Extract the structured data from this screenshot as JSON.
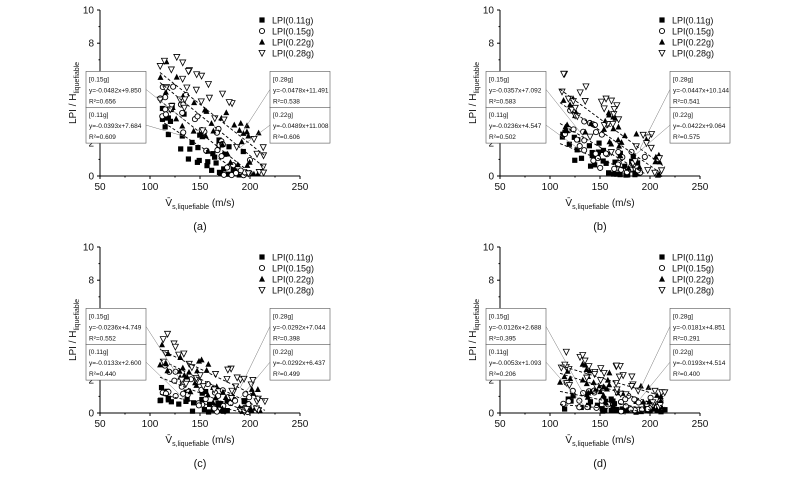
{
  "figure": {
    "layout": "2x2 grid of scatter plots"
  },
  "chart_data": [
    {
      "panel_label": "(a)",
      "type": "scatter",
      "xlabel": "V̄",
      "xlabel_sub": "s,liquefiable",
      "xlabel_unit": "(m/s)",
      "ylabel": "LPI / H",
      "ylabel_sub": "liquefiable",
      "xlim": [
        50,
        250
      ],
      "ylim": [
        0,
        10
      ],
      "xticks": [
        "50",
        "100",
        "150",
        "200",
        "250"
      ],
      "yticks": [
        "0",
        "2",
        "4",
        "6",
        "8",
        "10"
      ],
      "legend_position": "top-right",
      "series": [
        {
          "name": "LPI(0.11g)",
          "marker": "filled-square",
          "fit_label": "[0.11g]",
          "equation": "y=-0.0393x+7.684",
          "r2": "R²=0.609",
          "slope": -0.0393,
          "intercept": 7.684,
          "x_range": [
            110,
            195
          ]
        },
        {
          "name": "LPI(0.15g)",
          "marker": "open-circle",
          "fit_label": "[0.15g]",
          "equation": "y=-0.0482x+9.850",
          "r2": "R²=0.656",
          "slope": -0.0482,
          "intercept": 9.85,
          "x_range": [
            110,
            200
          ]
        },
        {
          "name": "LPI(0.22g)",
          "marker": "filled-triangle",
          "fit_label": "[0.22g]",
          "equation": "y=-0.0489x+11.008",
          "r2": "R²=0.606",
          "slope": -0.0489,
          "intercept": 11.008,
          "x_range": [
            110,
            215
          ]
        },
        {
          "name": "LPI(0.28g)",
          "marker": "open-inverted-triangle",
          "fit_label": "[0.28g]",
          "equation": "y=-0.0478x+11.491",
          "r2": "R²=0.538",
          "slope": -0.0478,
          "intercept": 11.491,
          "x_range": [
            110,
            215
          ]
        }
      ]
    },
    {
      "panel_label": "(b)",
      "type": "scatter",
      "xlabel": "V̄",
      "xlabel_sub": "s,liquefiable",
      "xlabel_unit": "(m/s)",
      "ylabel": "LPI / H",
      "ylabel_sub": "liquefiable",
      "xlim": [
        50,
        250
      ],
      "ylim": [
        0,
        10
      ],
      "xticks": [
        "50",
        "100",
        "150",
        "200",
        "250"
      ],
      "yticks": [
        "0",
        "2",
        "4",
        "6",
        "8",
        "10"
      ],
      "legend_position": "top-right",
      "series": [
        {
          "name": "LPI(0.11g)",
          "marker": "filled-square",
          "fit_label": "[0.11g]",
          "equation": "y=-0.0236x+4.547",
          "r2": "R²=0.502",
          "slope": -0.0236,
          "intercept": 4.547,
          "x_range": [
            110,
            190
          ]
        },
        {
          "name": "LPI(0.15g)",
          "marker": "open-circle",
          "fit_label": "[0.15g]",
          "equation": "y=-0.0357x+7.092",
          "r2": "R²=0.583",
          "slope": -0.0357,
          "intercept": 7.092,
          "x_range": [
            110,
            195
          ]
        },
        {
          "name": "LPI(0.22g)",
          "marker": "filled-triangle",
          "fit_label": "[0.22g]",
          "equation": "y=-0.0422x+9.064",
          "r2": "R²=0.575",
          "slope": -0.0422,
          "intercept": 9.064,
          "x_range": [
            110,
            210
          ]
        },
        {
          "name": "LPI(0.28g)",
          "marker": "open-inverted-triangle",
          "fit_label": "[0.28g]",
          "equation": "y=-0.0447x+10.144",
          "r2": "R²=0.541",
          "slope": -0.0447,
          "intercept": 10.144,
          "x_range": [
            110,
            215
          ]
        }
      ]
    },
    {
      "panel_label": "(c)",
      "type": "scatter",
      "xlabel": "V̄",
      "xlabel_sub": "s,liquefiable",
      "xlabel_unit": "(m/s)",
      "ylabel": "LPI / H",
      "ylabel_sub": "liquefiable",
      "xlim": [
        50,
        250
      ],
      "ylim": [
        0,
        10
      ],
      "xticks": [
        "50",
        "100",
        "150",
        "200",
        "250"
      ],
      "yticks": [
        "0",
        "2",
        "4",
        "6",
        "8",
        "10"
      ],
      "legend_position": "top-right",
      "series": [
        {
          "name": "LPI(0.11g)",
          "marker": "filled-square",
          "fit_label": "[0.11g]",
          "equation": "y=-0.0133x+2.600",
          "r2": "R²=0.440",
          "slope": -0.0133,
          "intercept": 2.6,
          "x_range": [
            110,
            195
          ]
        },
        {
          "name": "LPI(0.15g)",
          "marker": "open-circle",
          "fit_label": "[0.15g]",
          "equation": "y=-0.0236x+4.749",
          "r2": "R²=0.552",
          "slope": -0.0236,
          "intercept": 4.749,
          "x_range": [
            110,
            200
          ]
        },
        {
          "name": "LPI(0.22g)",
          "marker": "filled-triangle",
          "fit_label": "[0.22g]",
          "equation": "y=-0.0292x+6.437",
          "r2": "R²=0.499",
          "slope": -0.0292,
          "intercept": 6.437,
          "x_range": [
            110,
            215
          ]
        },
        {
          "name": "LPI(0.28g)",
          "marker": "open-inverted-triangle",
          "fit_label": "[0.28g]",
          "equation": "y=-0.0292x+7.044",
          "r2": "R²=0.398",
          "slope": -0.0292,
          "intercept": 7.044,
          "x_range": [
            110,
            215
          ]
        }
      ]
    },
    {
      "panel_label": "(d)",
      "type": "scatter",
      "xlabel": "V̄",
      "xlabel_sub": "s,liquefiable",
      "xlabel_unit": "(m/s)",
      "ylabel": "LPI / H",
      "ylabel_sub": "liquefiable",
      "xlim": [
        50,
        250
      ],
      "ylim": [
        0,
        10
      ],
      "xticks": [
        "50",
        "100",
        "150",
        "200",
        "250"
      ],
      "yticks": [
        "0",
        "2",
        "4",
        "6",
        "8",
        "10"
      ],
      "legend_position": "top-right",
      "series": [
        {
          "name": "LPI(0.11g)",
          "marker": "filled-square",
          "fit_label": "[0.11g]",
          "equation": "y=-0.0053x+1.093",
          "r2": "R²=0.206",
          "slope": -0.0053,
          "intercept": 1.093,
          "x_range": [
            110,
            215
          ]
        },
        {
          "name": "LPI(0.15g)",
          "marker": "open-circle",
          "fit_label": "[0.15g]",
          "equation": "y=-0.0126x+2.688",
          "r2": "R²=0.395",
          "slope": -0.0126,
          "intercept": 2.688,
          "x_range": [
            110,
            215
          ]
        },
        {
          "name": "LPI(0.22g)",
          "marker": "filled-triangle",
          "fit_label": "[0.22g]",
          "equation": "y=-0.0193x+4.514",
          "r2": "R²=0.400",
          "slope": -0.0193,
          "intercept": 4.514,
          "x_range": [
            110,
            215
          ]
        },
        {
          "name": "LPI(0.28g)",
          "marker": "open-inverted-triangle",
          "fit_label": "[0.28g]",
          "equation": "y=-0.0181x+4.851",
          "r2": "R²=0.291",
          "slope": -0.0181,
          "intercept": 4.851,
          "x_range": [
            110,
            215
          ]
        }
      ]
    }
  ]
}
